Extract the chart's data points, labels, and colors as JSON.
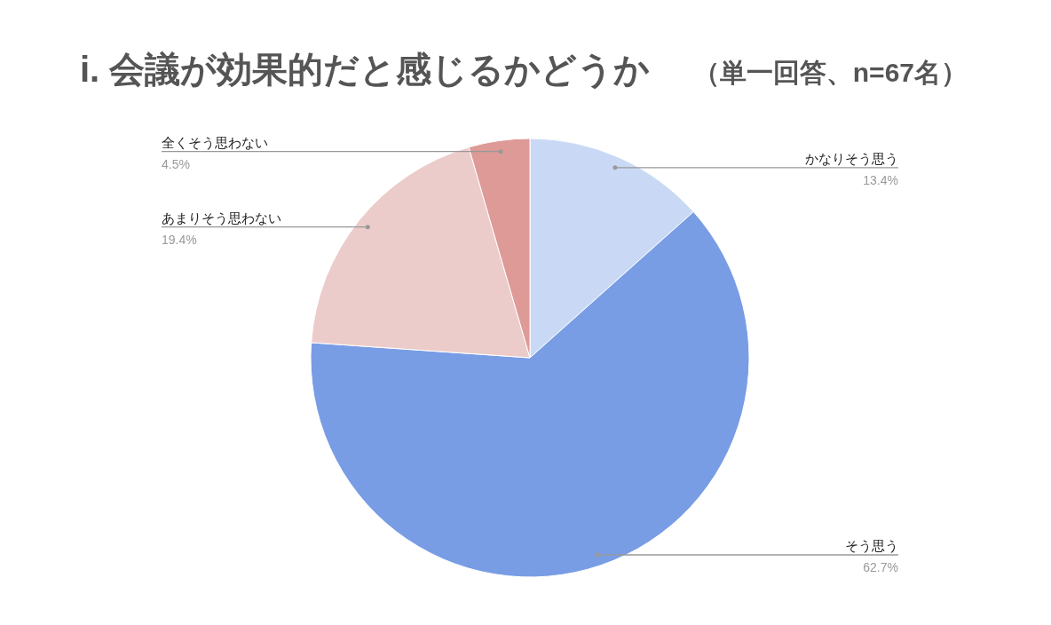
{
  "chart_data": {
    "type": "pie",
    "title": "i. 会議が効果的だと感じるかどうか",
    "subtitle": "（単一回答、n=67名）",
    "categories": [
      "かなりそう思う",
      "そう思う",
      "あまりそう思わない",
      "全くそう思わない"
    ],
    "values": [
      13.4,
      62.7,
      19.4,
      4.5
    ],
    "colors": [
      "#c9d9f5",
      "#789de5",
      "#ecccca",
      "#dd9a97"
    ],
    "value_labels": [
      "13.4%",
      "62.7%",
      "19.4%",
      "4.5%"
    ]
  }
}
